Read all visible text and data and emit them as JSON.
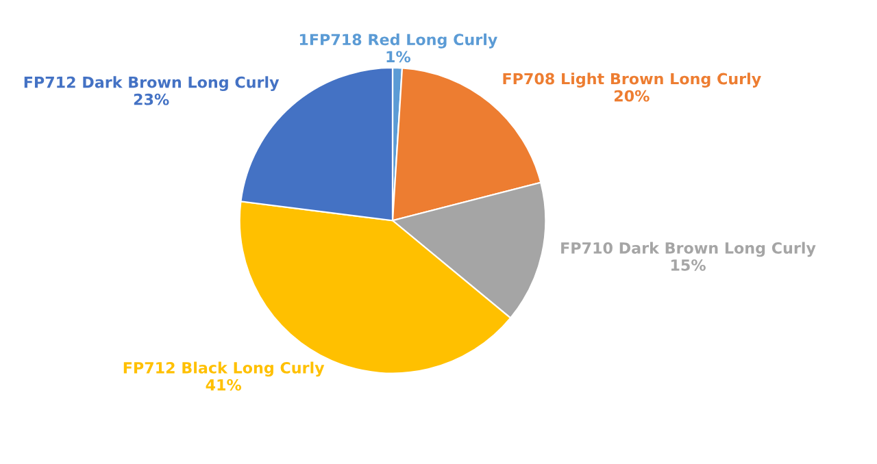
{
  "chart_data": {
    "type": "pie",
    "categories": [
      "1FP718 Red Long Curly",
      "FP708 Light Brown Long Curly",
      "FP710 Dark Brown Long Curly",
      "FP712 Black Long Curly",
      "FP712 Dark Brown Long Curly"
    ],
    "values": [
      1,
      20,
      15,
      41,
      23
    ],
    "value_labels": [
      "1%",
      "20%",
      "15%",
      "41%",
      "23%"
    ],
    "colors": [
      "#5b9bd5",
      "#ed7d31",
      "#a5a5a5",
      "#ffc000",
      "#4472c4"
    ]
  }
}
